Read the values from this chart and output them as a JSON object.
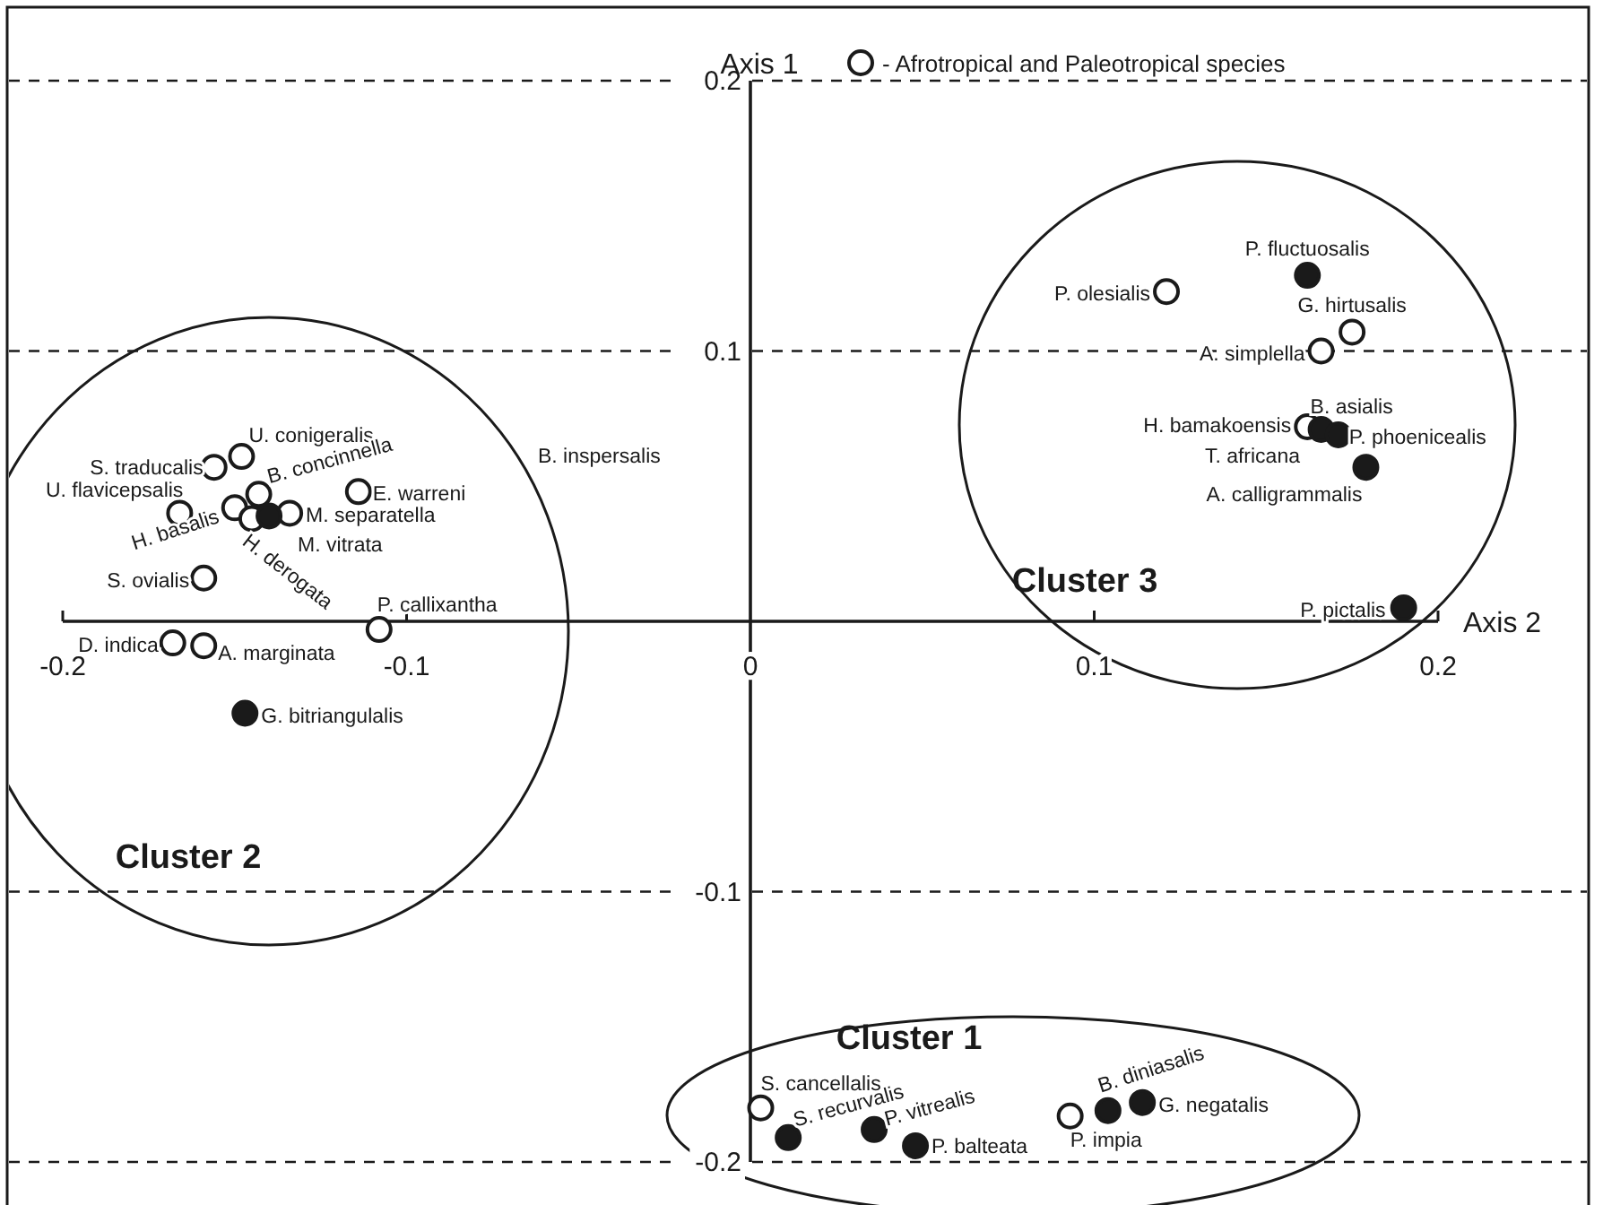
{
  "chart_data": {
    "type": "scatter",
    "xlabel": "Axis 2",
    "ylabel": "Axis 1",
    "xlim": [
      -0.2,
      0.2
    ],
    "ylim": [
      -0.2,
      0.2
    ],
    "xticks": [
      -0.2,
      -0.1,
      0,
      0.1,
      0.2
    ],
    "yticks": [
      -0.2,
      -0.1,
      0.1,
      0.2
    ],
    "grid": "y",
    "legend": "top",
    "marker": "circle",
    "series": [
      {
        "name": "- Afrotropical and Paleotropical species",
        "color": "#ffffff",
        "x": [
          -0.156,
          -0.148,
          -0.166,
          -0.15,
          -0.143,
          -0.145,
          -0.134,
          -0.114,
          -0.159,
          -0.108,
          -0.168,
          -0.159,
          0.121,
          0.175,
          0.166,
          0.162,
          0.003,
          0.093
        ],
        "values": [
          0.057,
          0.061,
          0.04,
          0.042,
          0.047,
          0.038,
          0.04,
          0.048,
          0.016,
          -0.003,
          -0.008,
          -0.009,
          0.122,
          0.107,
          0.1,
          0.072,
          -0.18,
          -0.183
        ]
      },
      {
        "color": "#1a1a1a",
        "x": [
          -0.14,
          -0.147,
          0.162,
          0.166,
          0.171,
          0.179,
          0.19,
          0.011,
          0.036,
          0.048,
          0.104,
          0.114
        ],
        "values": [
          0.039,
          -0.034,
          0.128,
          0.071,
          0.069,
          0.057,
          0.005,
          -0.191,
          -0.188,
          -0.194,
          -0.181,
          -0.178
        ]
      }
    ],
    "annotations": [
      {
        "text": "S. traducalis",
        "x": -0.156,
        "y": 0.057
      },
      {
        "text": "U. conigeralis",
        "x": -0.148,
        "y": 0.061
      },
      {
        "text": "U. flavicepsalis",
        "x": -0.166,
        "y": 0.04
      },
      {
        "text": "H. basalis",
        "x": -0.15,
        "y": 0.042
      },
      {
        "text": "B. concinnella",
        "x": -0.143,
        "y": 0.047
      },
      {
        "text": "H. derogata",
        "x": -0.145,
        "y": 0.038
      },
      {
        "text": "M. separatella",
        "x": -0.134,
        "y": 0.04
      },
      {
        "text": "E. warreni",
        "x": -0.114,
        "y": 0.048
      },
      {
        "text": "S. ovialis",
        "x": -0.159,
        "y": 0.016
      },
      {
        "text": "P. callixantha",
        "x": -0.108,
        "y": -0.003
      },
      {
        "text": "D. indica",
        "x": -0.168,
        "y": -0.008
      },
      {
        "text": "A. marginata",
        "x": -0.159,
        "y": -0.009
      },
      {
        "text": "P. olesialis",
        "x": 0.121,
        "y": 0.122
      },
      {
        "text": "G. hirtusalis",
        "x": 0.175,
        "y": 0.107
      },
      {
        "text": "A. simplella",
        "x": 0.166,
        "y": 0.1
      },
      {
        "text": "H. bamakoensis",
        "x": 0.162,
        "y": 0.072
      },
      {
        "text": "S. cancellalis",
        "x": 0.003,
        "y": -0.18
      },
      {
        "text": "P. impia",
        "x": 0.093,
        "y": -0.183
      },
      {
        "text": "M. vitrata",
        "x": -0.14,
        "y": 0.039
      },
      {
        "text": "G. bitriangulalis",
        "x": -0.147,
        "y": -0.034
      },
      {
        "text": "P. fluctuosalis",
        "x": 0.162,
        "y": 0.128
      },
      {
        "text": "B. asialis",
        "x": 0.166,
        "y": 0.071
      },
      {
        "text": "P. phoenicealis",
        "x": 0.171,
        "y": 0.069
      },
      {
        "text": "A. calligrammalis",
        "x": 0.179,
        "y": 0.057
      },
      {
        "text": "P. pictalis",
        "x": 0.19,
        "y": 0.005
      },
      {
        "text": "S. recurvalis",
        "x": 0.011,
        "y": -0.191
      },
      {
        "text": "P. vitrealis",
        "x": 0.036,
        "y": -0.188
      },
      {
        "text": "P. balteata",
        "x": 0.048,
        "y": -0.194
      },
      {
        "text": "B. diniasalis",
        "x": 0.104,
        "y": -0.181
      },
      {
        "text": "G. negatalis",
        "x": 0.114,
        "y": -0.178
      },
      "B. inspersalis",
      "T. africana",
      "Cluster 2",
      "Cluster 3",
      "Cluster 1"
    ]
  }
}
